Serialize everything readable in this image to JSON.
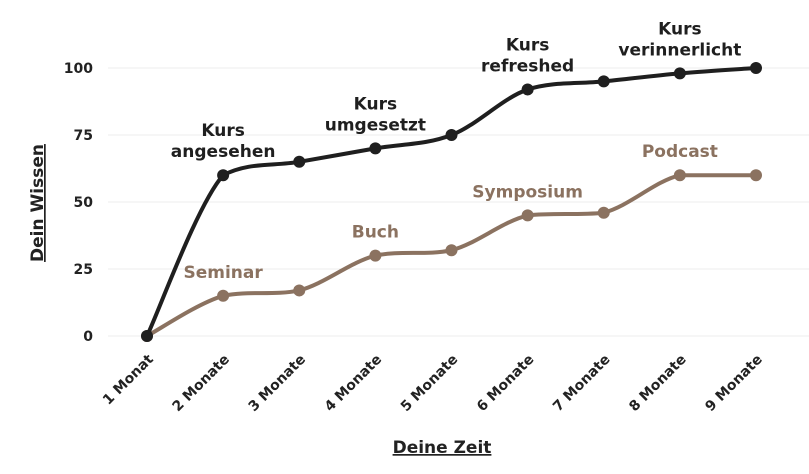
{
  "chart_data": {
    "type": "line",
    "categories": [
      "1 Monat",
      "2 Monate",
      "3 Monate",
      "4 Monate",
      "5 Monate",
      "6 Monate",
      "7 Monate",
      "8 Monate",
      "9 Monate"
    ],
    "xlabel": "Deine Zeit",
    "ylabel": "Dein Wissen",
    "ylim": [
      0,
      100
    ],
    "yticks": [
      0,
      25,
      50,
      75,
      100
    ],
    "grid": "horizontal",
    "series": [
      {
        "color": "#1f1f1f",
        "values": [
          0,
          60,
          65,
          70,
          75,
          92,
          95,
          98,
          100
        ]
      },
      {
        "color": "#8b7260",
        "values": [
          0,
          15,
          17,
          30,
          32,
          45,
          46,
          60,
          60
        ]
      }
    ],
    "annotations": [
      {
        "series": 0,
        "index": 1,
        "lines": [
          "Kurs",
          "angesehen"
        ]
      },
      {
        "series": 0,
        "index": 3,
        "lines": [
          "Kurs",
          "umgesetzt"
        ]
      },
      {
        "series": 0,
        "index": 5,
        "lines": [
          "Kurs",
          "refreshed"
        ]
      },
      {
        "series": 0,
        "index": 7,
        "lines": [
          "Kurs",
          "verinnerlicht"
        ]
      },
      {
        "series": 1,
        "index": 1,
        "lines": [
          "Seminar"
        ]
      },
      {
        "series": 1,
        "index": 3,
        "lines": [
          "Buch"
        ]
      },
      {
        "series": 1,
        "index": 5,
        "lines": [
          "Symposium"
        ]
      },
      {
        "series": 1,
        "index": 7,
        "lines": [
          "Podcast"
        ]
      }
    ]
  }
}
